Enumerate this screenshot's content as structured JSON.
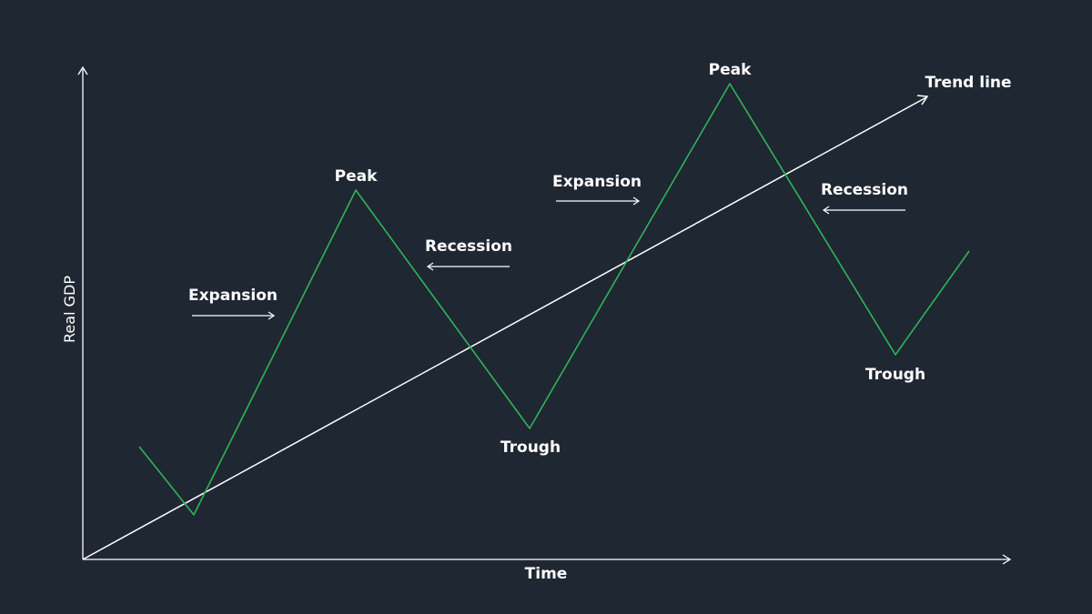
{
  "labels": {
    "y_axis": "Real GDP",
    "x_axis": "Time",
    "trend": "Trend line",
    "phases": [
      "Expansion",
      "Peak",
      "Recession",
      "Trough",
      "Expansion",
      "Peak",
      "Recession",
      "Trough"
    ]
  },
  "colors": {
    "background": "#1f2732",
    "cycle_line": "#2fb457",
    "trend_line": "#ffffff",
    "axis": "#ffffff",
    "text": "#ffffff"
  }
}
